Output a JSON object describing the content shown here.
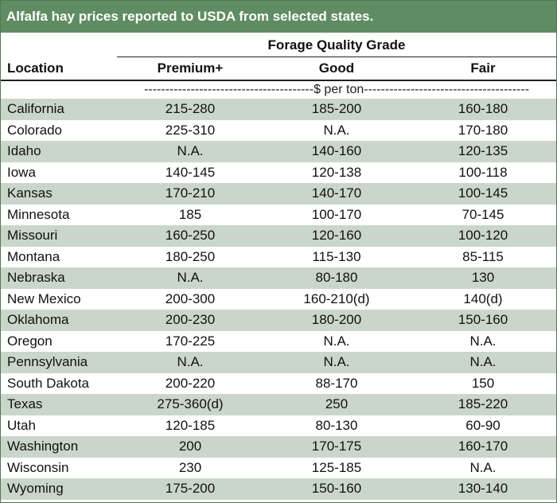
{
  "title": "Alfalfa hay prices reported to USDA from selected states.",
  "header": {
    "group_label": "Forage Quality Grade",
    "location_label": "Location",
    "columns": [
      "Premium+",
      "Good",
      "Fair"
    ],
    "units": "----------------------------------------$ per ton---------------------------------------"
  },
  "rows": [
    {
      "location": "California",
      "premium": "215-280",
      "good": "185-200",
      "fair": "160-180"
    },
    {
      "location": "Colorado",
      "premium": "225-310",
      "good": "N.A.",
      "fair": "170-180"
    },
    {
      "location": "Idaho",
      "premium": "N.A.",
      "good": "140-160",
      "fair": "120-135"
    },
    {
      "location": "Iowa",
      "premium": "140-145",
      "good": "120-138",
      "fair": "100-118"
    },
    {
      "location": "Kansas",
      "premium": "170-210",
      "good": "140-170",
      "fair": "100-145"
    },
    {
      "location": "Minnesota",
      "premium": "185",
      "good": "100-170",
      "fair": "70-145"
    },
    {
      "location": "Missouri",
      "premium": "160-250",
      "good": "120-160",
      "fair": "100-120"
    },
    {
      "location": "Montana",
      "premium": "180-250",
      "good": "115-130",
      "fair": "85-115"
    },
    {
      "location": "Nebraska",
      "premium": "N.A.",
      "good": "80-180",
      "fair": "130"
    },
    {
      "location": "New Mexico",
      "premium": "200-300",
      "good": "160-210(d)",
      "fair": "140(d)"
    },
    {
      "location": "Oklahoma",
      "premium": "200-230",
      "good": "180-200",
      "fair": "150-160"
    },
    {
      "location": "Oregon",
      "premium": "170-225",
      "good": "N.A.",
      "fair": "N.A."
    },
    {
      "location": "Pennsylvania",
      "premium": "N.A.",
      "good": "N.A.",
      "fair": "N.A."
    },
    {
      "location": "South Dakota",
      "premium": "200-220",
      "good": "88-170",
      "fair": "150"
    },
    {
      "location": "Texas",
      "premium": "275-360(d)",
      "good": "250",
      "fair": "185-220"
    },
    {
      "location": "Utah",
      "premium": "120-185",
      "good": "80-130",
      "fair": "60-90"
    },
    {
      "location": "Washington",
      "premium": "200",
      "good": "170-175",
      "fair": "160-170"
    },
    {
      "location": "Wisconsin",
      "premium": "230",
      "good": "125-185",
      "fair": "N.A."
    },
    {
      "location": "Wyoming",
      "premium": "175-200",
      "good": "150-160",
      "fair": "130-140"
    }
  ],
  "colors": {
    "title_bg": "#5f8c62",
    "row_shade": "#cbd6ca"
  }
}
